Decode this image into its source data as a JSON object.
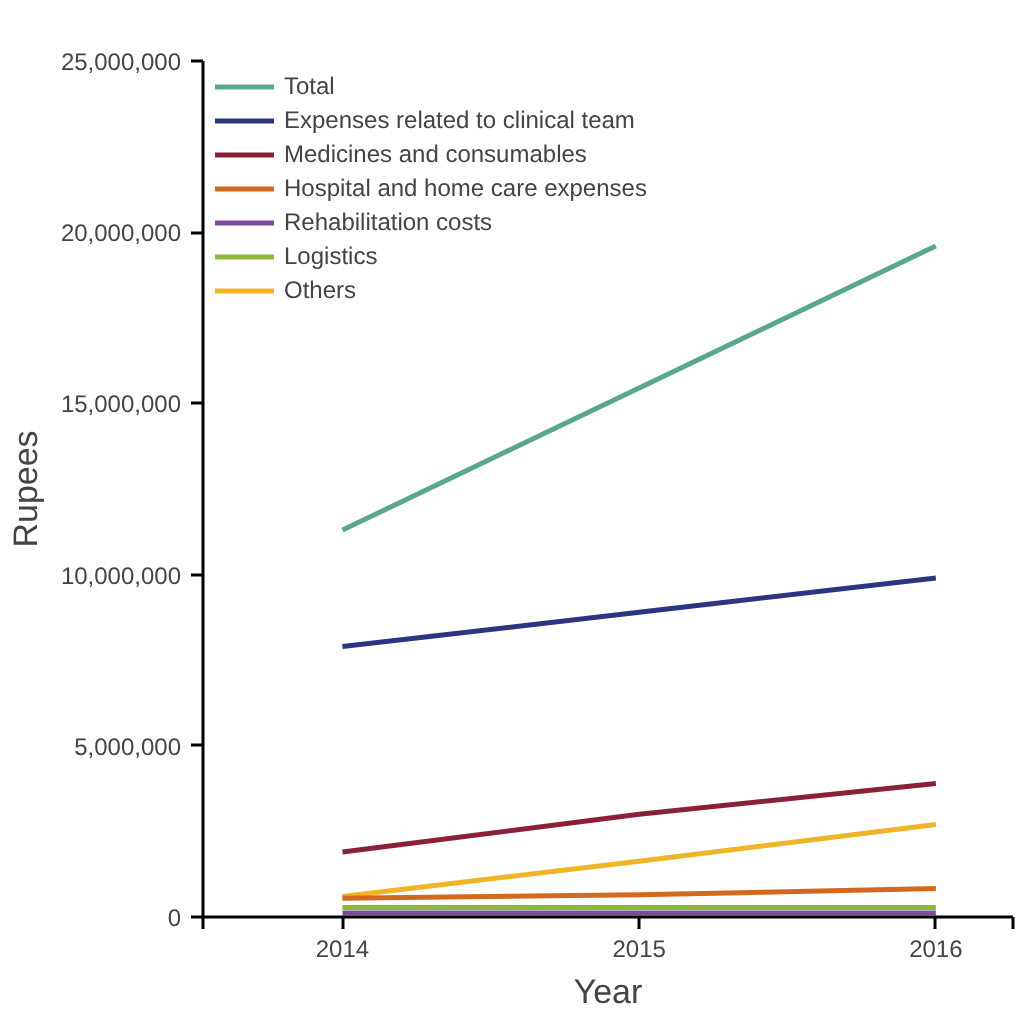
{
  "chart_data": {
    "type": "line",
    "xlabel": "Year",
    "ylabel": "Rupees",
    "x": [
      2014,
      2015,
      2016
    ],
    "xlim": [
      2013.53,
      2016.26
    ],
    "xticks": [
      {
        "value": 2013.53,
        "label": null
      },
      2014,
      2015,
      2016,
      {
        "value": 2016.26,
        "label": null
      }
    ],
    "ylim": [
      0,
      25000000
    ],
    "yticks": [
      {
        "value": 0,
        "label": "0"
      },
      {
        "value": 5000000,
        "label": "5,000,000"
      },
      {
        "value": 10000000,
        "label": "10,000,000"
      },
      {
        "value": 15000000,
        "label": "15,000,000"
      },
      {
        "value": 20000000,
        "label": "20,000,000"
      },
      {
        "value": 25000000,
        "label": "25,000,000"
      }
    ],
    "grid": false,
    "legend": "top left",
    "marker": "none",
    "line_style": "solid",
    "series": [
      {
        "name": "Total",
        "color": "#5aa88a",
        "values": [
          11300000,
          15450000,
          19600000
        ]
      },
      {
        "name": "Expenses related to clinical team",
        "color": "#2b3582",
        "values": [
          7900000,
          8900000,
          9900000
        ]
      },
      {
        "name": "Medicines and consumables",
        "color": "#8b2139",
        "values": [
          1900000,
          3000000,
          3900000
        ]
      },
      {
        "name": "Hospital and home care expenses",
        "color": "#d2691e",
        "values": [
          550000,
          650000,
          830000
        ]
      },
      {
        "name": "Rehabilitation costs",
        "color": "#7b4d9a",
        "values": [
          120000,
          120000,
          120000
        ]
      },
      {
        "name": "Logistics",
        "color": "#8cb83c",
        "values": [
          280000,
          280000,
          280000
        ]
      },
      {
        "name": "Others",
        "color": "#f0b429",
        "values": [
          600000,
          1630000,
          2700000
        ]
      }
    ]
  }
}
